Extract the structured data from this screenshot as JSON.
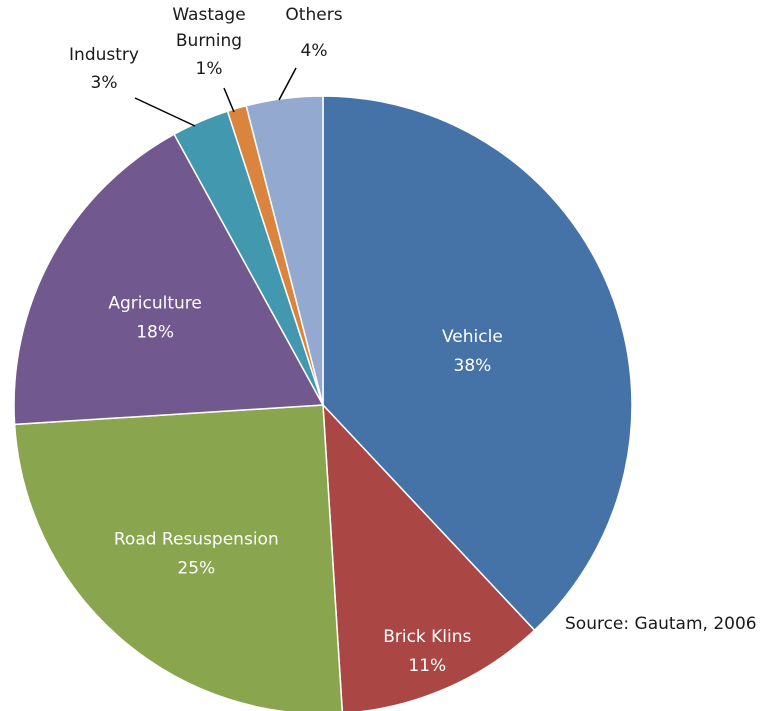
{
  "chart_data": {
    "type": "pie",
    "title": "",
    "start_angle_deg": 0,
    "direction": "clockwise",
    "slices": [
      {
        "name": "Vehicle",
        "value": 38,
        "value_label": "38%",
        "color": "#4572A7",
        "label_position": "inside"
      },
      {
        "name": "Brick Klins",
        "value": 11,
        "value_label": "11%",
        "color": "#AA4643",
        "label_position": "inside"
      },
      {
        "name": "Road Resuspension",
        "value": 25,
        "value_label": "25%",
        "color": "#89A54E",
        "label_position": "inside"
      },
      {
        "name": "Agriculture",
        "value": 18,
        "value_label": "18%",
        "color": "#71588F",
        "label_position": "inside"
      },
      {
        "name": "Industry",
        "value": 3,
        "value_label": "3%",
        "color": "#4198AF",
        "label_position": "outside"
      },
      {
        "name": "Wastage Burning",
        "value": 1,
        "value_label": "1%",
        "color": "#DB843D",
        "label_position": "outside"
      },
      {
        "name": "Others",
        "value": 4,
        "value_label": "4%",
        "color": "#93A9CF",
        "label_position": "outside"
      }
    ]
  },
  "source_note": "Source: Gautam, 2006"
}
